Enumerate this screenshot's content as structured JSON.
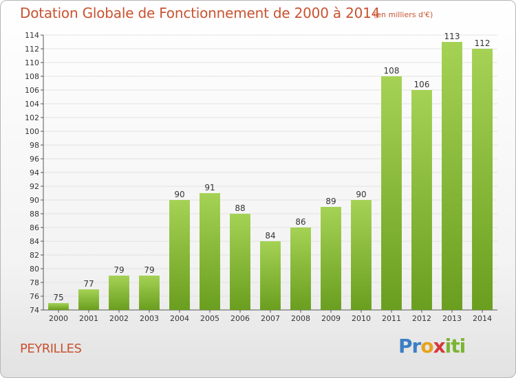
{
  "header": {
    "title": "Dotation Globale de Fonctionnement de 2000 à 2014",
    "unit_note": "(en milliers d'€)"
  },
  "footer": {
    "commune": "PEYRILLES",
    "brand_letters": [
      "P",
      "r",
      "o",
      "x",
      "i",
      "t",
      "i"
    ],
    "brand_colors": [
      "#3b7fc4",
      "#3b7fc4",
      "#e8a21c",
      "#d6383a",
      "#7ab532",
      "#7ab532",
      "#7ab532"
    ]
  },
  "chart_data": {
    "type": "bar",
    "title": "Dotation Globale de Fonctionnement de 2000 à 2014",
    "subtitle": "(en milliers d'€)",
    "categories": [
      "2000",
      "2001",
      "2002",
      "2003",
      "2004",
      "2005",
      "2006",
      "2007",
      "2008",
      "2009",
      "2010",
      "2011",
      "2012",
      "2013",
      "2014"
    ],
    "values": [
      75,
      77,
      79,
      79,
      90,
      91,
      88,
      84,
      86,
      89,
      90,
      108,
      106,
      113,
      112
    ],
    "ylim": [
      74,
      114
    ],
    "ytick_step": 2,
    "grid": true,
    "bar_colors": {
      "top": "#a5d255",
      "bottom": "#6a9e1f"
    },
    "grid_color": "#e2e2e2"
  }
}
